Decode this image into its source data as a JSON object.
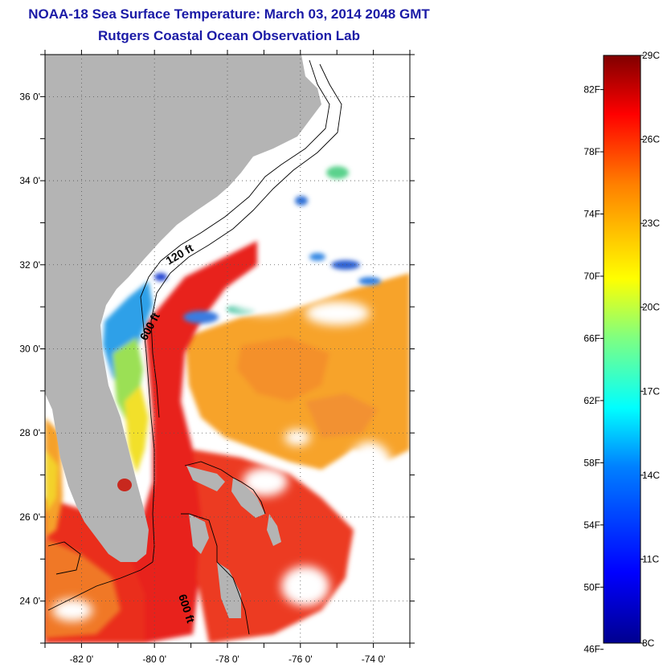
{
  "header": {
    "title": "NOAA-18 Sea Surface Temperature:  March 03, 2014 2048 GMT",
    "subtitle": "Rutgers Coastal Ocean Observation Lab"
  },
  "map": {
    "lon_ticks": [
      "-82 0'",
      "-80 0'",
      "-78 0'",
      "-76 0'",
      "-74 0'"
    ],
    "lat_ticks": [
      "36 0'",
      "34 0'",
      "32 0'",
      "30 0'",
      "28 0'",
      "26 0'",
      "24 0'"
    ],
    "lon_values": [
      -82,
      -80,
      -78,
      -76,
      -74
    ],
    "lat_values": [
      36,
      34,
      32,
      30,
      28,
      26,
      24
    ],
    "lon_range": [
      -83,
      -73
    ],
    "lat_range": [
      23,
      37
    ],
    "contour_labels": [
      "120 ft",
      "600 ft",
      "600 ft"
    ],
    "colors": {
      "land": "#b4b4b4",
      "cloud": "#ffffff",
      "gulf_stream": "#e8231a",
      "warm_sargasso": "#f7a32b",
      "cool_shelf": "#3a7be0"
    }
  },
  "colorbar": {
    "fahrenheit_labels": [
      "82F",
      "78F",
      "74F",
      "70F",
      "66F",
      "62F",
      "58F",
      "54F",
      "50F",
      "46F"
    ],
    "fahrenheit_values": [
      82,
      78,
      74,
      70,
      66,
      62,
      58,
      54,
      50,
      46
    ],
    "celsius_labels": [
      "29C",
      "26C",
      "23C",
      "20C",
      "17C",
      "14C",
      "11C",
      "8C"
    ],
    "celsius_values": [
      29,
      26,
      23,
      20,
      17,
      14,
      11,
      8
    ],
    "range_c": [
      8,
      29
    ],
    "gradient": [
      "#00008f",
      "#0000ff",
      "#0080ff",
      "#00ffff",
      "#80ff80",
      "#ffff00",
      "#ff8000",
      "#ff0000",
      "#800000"
    ]
  }
}
